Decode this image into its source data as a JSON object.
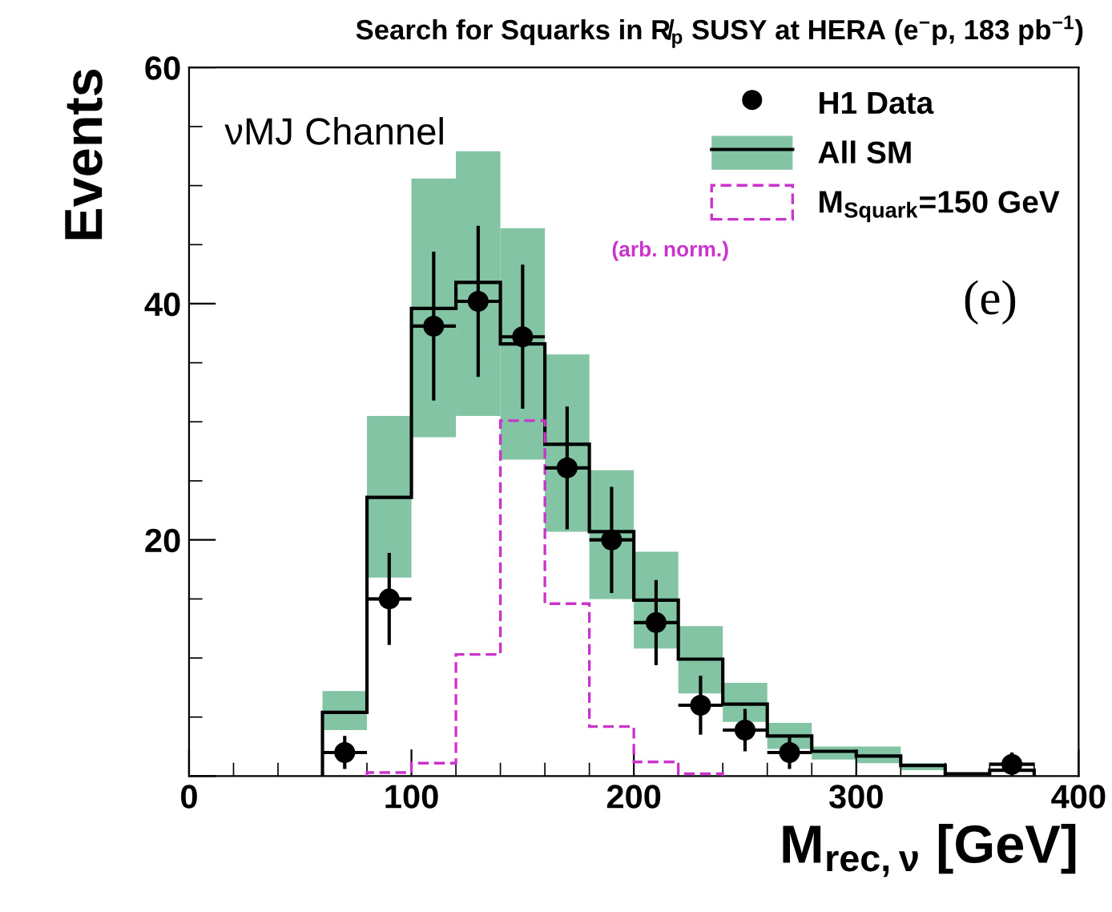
{
  "chart_data": {
    "type": "histogram",
    "title": "Search for Squarks in R̸$_{p}$ SUSY at HERA (e$^{−}$p, 183 pb$^{−1}$)",
    "xlabel": "M$_{rec,ν}$ [GeV]",
    "ylabel": "Events",
    "annotations": [
      "νMJ Channel",
      "(e)",
      "(arb. norm.)"
    ],
    "xlim": [
      0,
      400
    ],
    "xticks": [
      0,
      100,
      200,
      300,
      400
    ],
    "ylim": [
      0,
      60
    ],
    "yticks": [
      {
        "value": 0,
        "label": null
      },
      20,
      40,
      60
    ],
    "grid": false,
    "legend": "top right",
    "series": [
      {
        "name": "H1 Data",
        "type": "scatter",
        "color": "#000000",
        "marker": "circle",
        "x": [
          70,
          90,
          110,
          130,
          150,
          170,
          190,
          210,
          230,
          250,
          270,
          370
        ],
        "values": [
          2.0,
          15.0,
          38.1,
          40.2,
          37.2,
          26.1,
          20.0,
          13.0,
          6.0,
          3.9,
          2.0,
          1.0
        ],
        "errors": [
          1.4,
          3.9,
          6.3,
          6.4,
          6.1,
          5.2,
          4.5,
          3.6,
          2.5,
          1.8,
          1.4,
          1.0
        ],
        "xerrors": [
          10,
          10,
          10,
          10,
          10,
          10,
          10,
          10,
          10,
          10,
          10,
          10
        ]
      },
      {
        "type": "bar",
        "color": "#82c4a4",
        "x": [
          70,
          90,
          110,
          130,
          150,
          170,
          190,
          210,
          230,
          250,
          270,
          290,
          310,
          330
        ],
        "base": [
          3.9,
          16.8,
          28.7,
          30.5,
          26.8,
          20.7,
          15.0,
          10.8,
          7.0,
          4.6,
          2.3,
          1.4,
          1.1,
          0.5
        ],
        "values": [
          3.3,
          13.7,
          21.9,
          22.4,
          19.6,
          15.0,
          10.9,
          8.2,
          5.7,
          3.3,
          2.2,
          1.1,
          1.4,
          0.6
        ]
      },
      {
        "name": "All SM",
        "color": "#000000",
        "bins": [
          60,
          80,
          100,
          120,
          140,
          160,
          180,
          200,
          220,
          240,
          260,
          280,
          300,
          320,
          340,
          360,
          380
        ],
        "values": [
          5.4,
          23.6,
          39.6,
          41.8,
          36.6,
          28.1,
          20.7,
          14.9,
          9.9,
          6.1,
          3.4,
          2.1,
          1.7,
          0.9,
          0.2,
          0.5
        ]
      },
      {
        "name": "M$_{Squark}$=150 GeV",
        "type": "histogram",
        "color": "#cc33cc",
        "line_style": "dashed",
        "bins": [
          80,
          100,
          120,
          140,
          160,
          180,
          200,
          220,
          240
        ],
        "values": [
          0.3,
          1.1,
          10.3,
          30.1,
          14.6,
          4.2,
          1.2,
          0.2
        ]
      }
    ]
  }
}
